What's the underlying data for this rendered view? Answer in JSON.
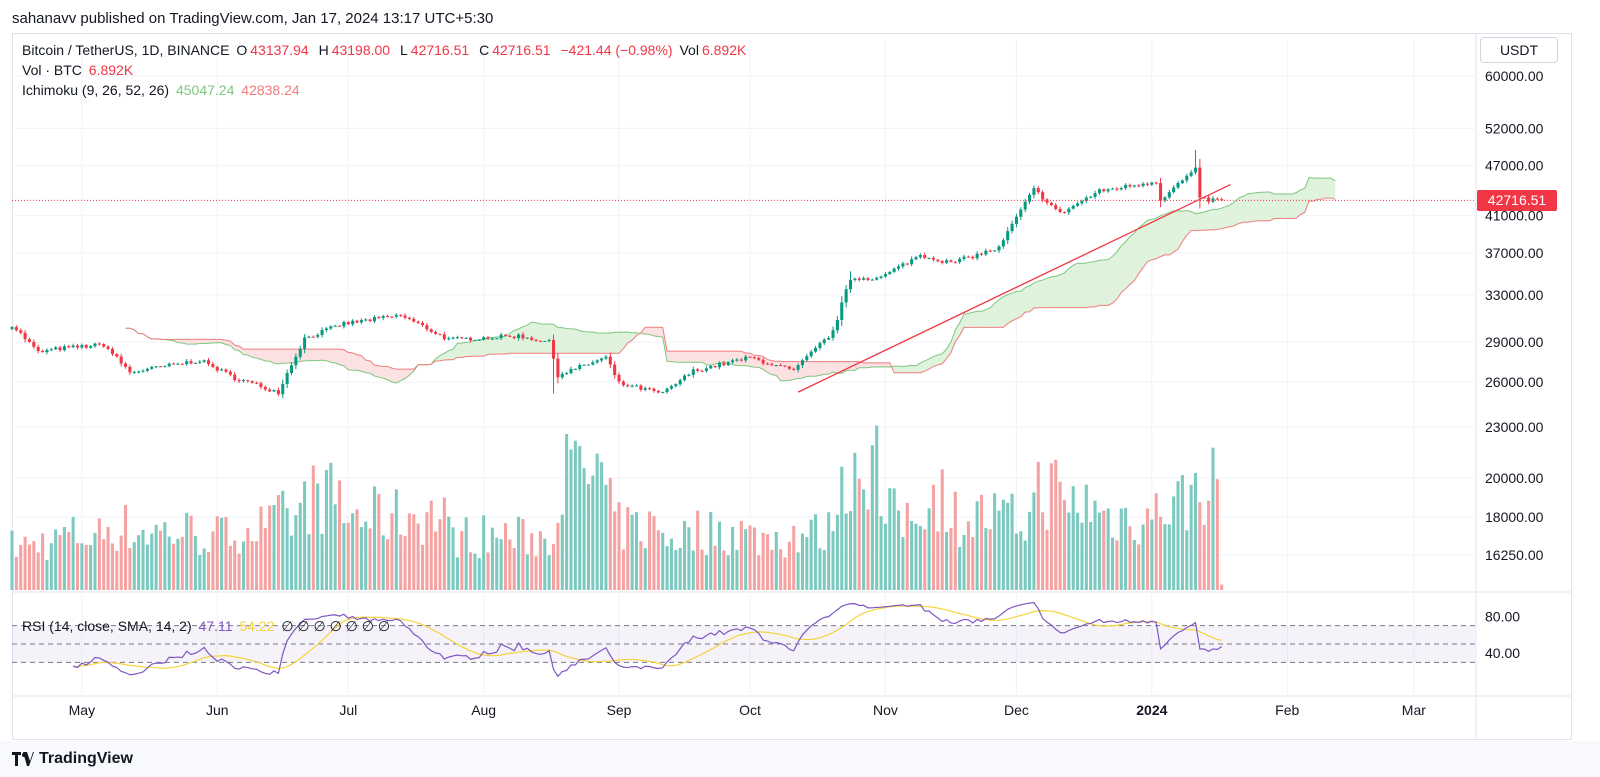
{
  "header": {
    "published_by": "sahanavv published on TradingView.com, Jan 17, 2024 13:17 UTC+5:30"
  },
  "legend": {
    "symbol": "Bitcoin / TetherUS, 1D, BINANCE",
    "o_label": "O",
    "o_value": "43137.94",
    "h_label": "H",
    "h_value": "43198.00",
    "l_label": "L",
    "l_value": "42716.51",
    "c_label": "C",
    "c_value": "42716.51",
    "change": "−421.44 (−0.98%)",
    "vol_label": "Vol",
    "vol_value": "6.892K",
    "vol_title": "Vol · BTC",
    "vol_title_value": "6.892K",
    "ichimoku_title": "Ichimoku (9, 26, 52, 26)",
    "ichimoku_a": "45047.24",
    "ichimoku_b": "42838.24",
    "rsi_title": "RSI (14, close, SMA, 14, 2)",
    "rsi_value": "47.11",
    "rsi_sma": "54.22",
    "rsi_nulls": "∅ ∅ ∅ ∅ ∅ ∅ ∅"
  },
  "currency": "USDT",
  "last_price": "42716.51",
  "footer": {
    "brand": "TradingView"
  },
  "colors": {
    "up": "#089981",
    "down": "#f23645",
    "up_volume": "#7cc9c0",
    "down_volume": "#f4a2a2",
    "cloud_bull": "#dff2dc",
    "cloud_bear": "#fbe1e1",
    "span_a": "#7fc67f",
    "span_b": "#ef7d7d",
    "rsi": "#7e57c2",
    "rsi_sma": "#f5d33a",
    "trendline": "#f23645"
  },
  "chart_data": {
    "type": "candlestick",
    "title": "Bitcoin / TetherUS, 1D, BINANCE",
    "y_scale": "log",
    "price_ticks": [
      "60000.00",
      "52000.00",
      "47000.00",
      "41000.00",
      "37000.00",
      "33000.00",
      "29000.00",
      "26000.00",
      "23000.00",
      "20000.00",
      "18000.00",
      "16250.00"
    ],
    "rsi_ticks": [
      "80.00",
      "40.00"
    ],
    "rsi_bands": [
      70,
      50,
      30
    ],
    "x_labels": [
      "May",
      "Jun",
      "Jul",
      "Aug",
      "Sep",
      "Oct",
      "Nov",
      "Dec",
      "2024",
      "Feb",
      "Mar"
    ],
    "x_range": [
      "2023-04-15",
      "2024-03-15"
    ],
    "last_bar": "2024-01-17",
    "price_anchors": [
      [
        "2023-04-15",
        30400,
        420
      ],
      [
        "2023-04-21",
        28200,
        460
      ],
      [
        "2023-04-26",
        28500,
        520
      ],
      [
        "2023-05-06",
        28800,
        600
      ],
      [
        "2023-05-12",
        26700,
        560
      ],
      [
        "2023-05-28",
        27600,
        520
      ],
      [
        "2023-06-05",
        26300,
        600
      ],
      [
        "2023-06-15",
        25300,
        680
      ],
      [
        "2023-06-21",
        29300,
        880
      ],
      [
        "2023-06-30",
        30500,
        700
      ],
      [
        "2023-07-13",
        31200,
        720
      ],
      [
        "2023-07-24",
        29200,
        520
      ],
      [
        "2023-08-09",
        29500,
        500
      ],
      [
        "2023-08-16",
        29000,
        520
      ],
      [
        "2023-08-18",
        26500,
        1100
      ],
      [
        "2023-08-29",
        27800,
        760
      ],
      [
        "2023-09-01",
        25900,
        600
      ],
      [
        "2023-09-11",
        25200,
        520
      ],
      [
        "2023-09-18",
        26800,
        560
      ],
      [
        "2023-10-01",
        27800,
        500
      ],
      [
        "2023-10-11",
        26800,
        540
      ],
      [
        "2023-10-20",
        29800,
        900
      ],
      [
        "2023-10-24",
        34500,
        1250
      ],
      [
        "2023-10-31",
        34600,
        700
      ],
      [
        "2023-11-09",
        36800,
        900
      ],
      [
        "2023-11-16",
        36000,
        700
      ],
      [
        "2023-11-27",
        37500,
        660
      ],
      [
        "2023-12-05",
        44000,
        960
      ],
      [
        "2023-12-11",
        41200,
        820
      ],
      [
        "2023-12-20",
        43800,
        700
      ],
      [
        "2024-01-02",
        45000,
        720
      ],
      [
        "2024-01-03",
        42800,
        840
      ],
      [
        "2024-01-11",
        46500,
        1050
      ],
      [
        "2024-01-12",
        42800,
        1020
      ],
      [
        "2024-01-17",
        42716.51,
        50
      ]
    ],
    "trendline": [
      [
        "2023-10-12",
        25300
      ],
      [
        "2024-01-19",
        44600
      ]
    ],
    "ichimoku": {
      "conversion": 9,
      "base": 26,
      "span_b": 52,
      "displacement": 26,
      "span_a_last": 45047.24,
      "span_b_last": 42838.24
    },
    "rsi": {
      "period": 14,
      "sma": 14,
      "last": 47.11,
      "sma_last": 54.22
    }
  }
}
